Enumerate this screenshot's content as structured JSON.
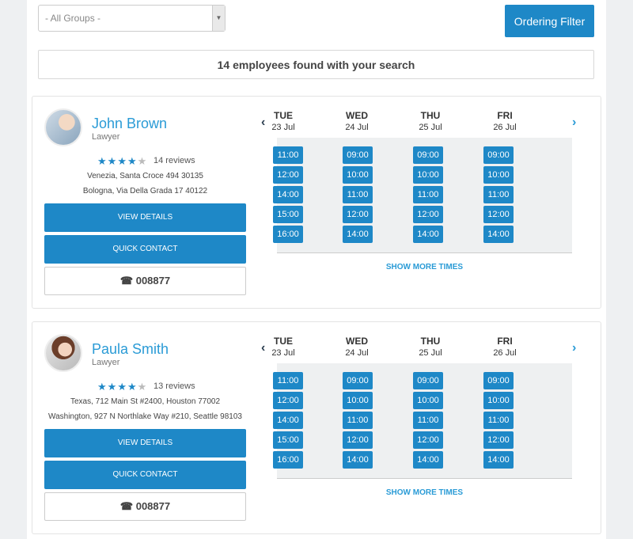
{
  "filter": {
    "group_value": "- All Groups -",
    "ordering_label": "Ordering Filter"
  },
  "results_text": "14 employees found with your search",
  "days": [
    {
      "name": "TUE",
      "date": "23 Jul"
    },
    {
      "name": "WED",
      "date": "24 Jul"
    },
    {
      "name": "THU",
      "date": "25 Jul"
    },
    {
      "name": "FRI",
      "date": "26 Jul"
    }
  ],
  "slots": [
    [
      "11:00",
      "12:00",
      "14:00",
      "15:00",
      "16:00"
    ],
    [
      "09:00",
      "10:00",
      "11:00",
      "12:00",
      "14:00"
    ],
    [
      "09:00",
      "10:00",
      "11:00",
      "12:00",
      "14:00"
    ],
    [
      "09:00",
      "10:00",
      "11:00",
      "12:00",
      "14:00"
    ]
  ],
  "employees": [
    {
      "name": "John Brown",
      "role": "Lawyer",
      "rating": 4,
      "reviews": "14 reviews",
      "address1": "Venezia, Santa Croce 494 30135",
      "address2": "Bologna, Via Della Grada 17 40122",
      "view_label": "VIEW DETAILS",
      "contact_label": "QUICK CONTACT",
      "phone": "008877",
      "more_label": "SHOW MORE TIMES"
    },
    {
      "name": "Paula Smith",
      "role": "Lawyer",
      "rating": 4,
      "reviews": "13 reviews",
      "address1": "Texas, 712 Main St #2400, Houston 77002",
      "address2": "Washington, 927 N Northlake Way #210, Seattle 98103",
      "view_label": "VIEW DETAILS",
      "contact_label": "QUICK CONTACT",
      "phone": "008877",
      "more_label": "SHOW MORE TIMES"
    }
  ],
  "nav": {
    "prev": "‹",
    "next": "›"
  },
  "icons": {
    "phone": "☎",
    "star": "★"
  },
  "colors": {
    "accent": "#1e88c7",
    "link": "#2a9bd6"
  }
}
